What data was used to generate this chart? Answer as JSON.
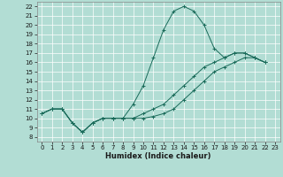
{
  "xlabel": "Humidex (Indice chaleur)",
  "background_color": "#b2ddd4",
  "grid_color": "#ffffff",
  "line_color": "#1a6b5a",
  "xlim": [
    -0.5,
    23.5
  ],
  "ylim": [
    7.5,
    22.5
  ],
  "xticks": [
    0,
    1,
    2,
    3,
    4,
    5,
    6,
    7,
    8,
    9,
    10,
    11,
    12,
    13,
    14,
    15,
    16,
    17,
    18,
    19,
    20,
    21,
    22,
    23
  ],
  "yticks": [
    8,
    9,
    10,
    11,
    12,
    13,
    14,
    15,
    16,
    17,
    18,
    19,
    20,
    21,
    22
  ],
  "main_x": [
    0,
    1,
    2,
    3,
    4,
    5,
    6,
    7,
    8,
    9,
    10,
    11,
    12,
    13,
    14,
    15,
    16,
    17,
    18,
    19,
    20,
    21,
    22
  ],
  "main_y": [
    10.5,
    11.0,
    11.0,
    9.5,
    8.5,
    9.5,
    10.0,
    10.0,
    10.0,
    11.5,
    13.5,
    16.5,
    19.5,
    21.5,
    22.0,
    21.5,
    20.0,
    17.5,
    16.5,
    17.0,
    17.0,
    16.5,
    16.0
  ],
  "upper_x": [
    0,
    1,
    2,
    3,
    4,
    5,
    6,
    7,
    8,
    9,
    10,
    11,
    12,
    13,
    14,
    15,
    16,
    17,
    18,
    19,
    20,
    21,
    22
  ],
  "upper_y": [
    10.5,
    11.0,
    11.0,
    9.5,
    8.5,
    9.5,
    10.0,
    10.0,
    10.0,
    10.0,
    10.5,
    11.0,
    11.5,
    12.5,
    13.5,
    14.5,
    15.5,
    16.0,
    16.5,
    17.0,
    17.0,
    16.5,
    16.0
  ],
  "lower_x": [
    0,
    1,
    2,
    3,
    4,
    5,
    6,
    7,
    8,
    9,
    10,
    11,
    12,
    13,
    14,
    15,
    16,
    17,
    18,
    19,
    20,
    21,
    22
  ],
  "lower_y": [
    10.5,
    11.0,
    11.0,
    9.5,
    8.5,
    9.5,
    10.0,
    10.0,
    10.0,
    10.0,
    10.0,
    10.2,
    10.5,
    11.0,
    12.0,
    13.0,
    14.0,
    15.0,
    15.5,
    16.0,
    16.5,
    16.5,
    16.0
  ],
  "xlabel_fontsize": 6.0,
  "tick_fontsize": 5.0,
  "linewidth": 0.7,
  "markersize": 3.0,
  "markeredgewidth": 0.7
}
